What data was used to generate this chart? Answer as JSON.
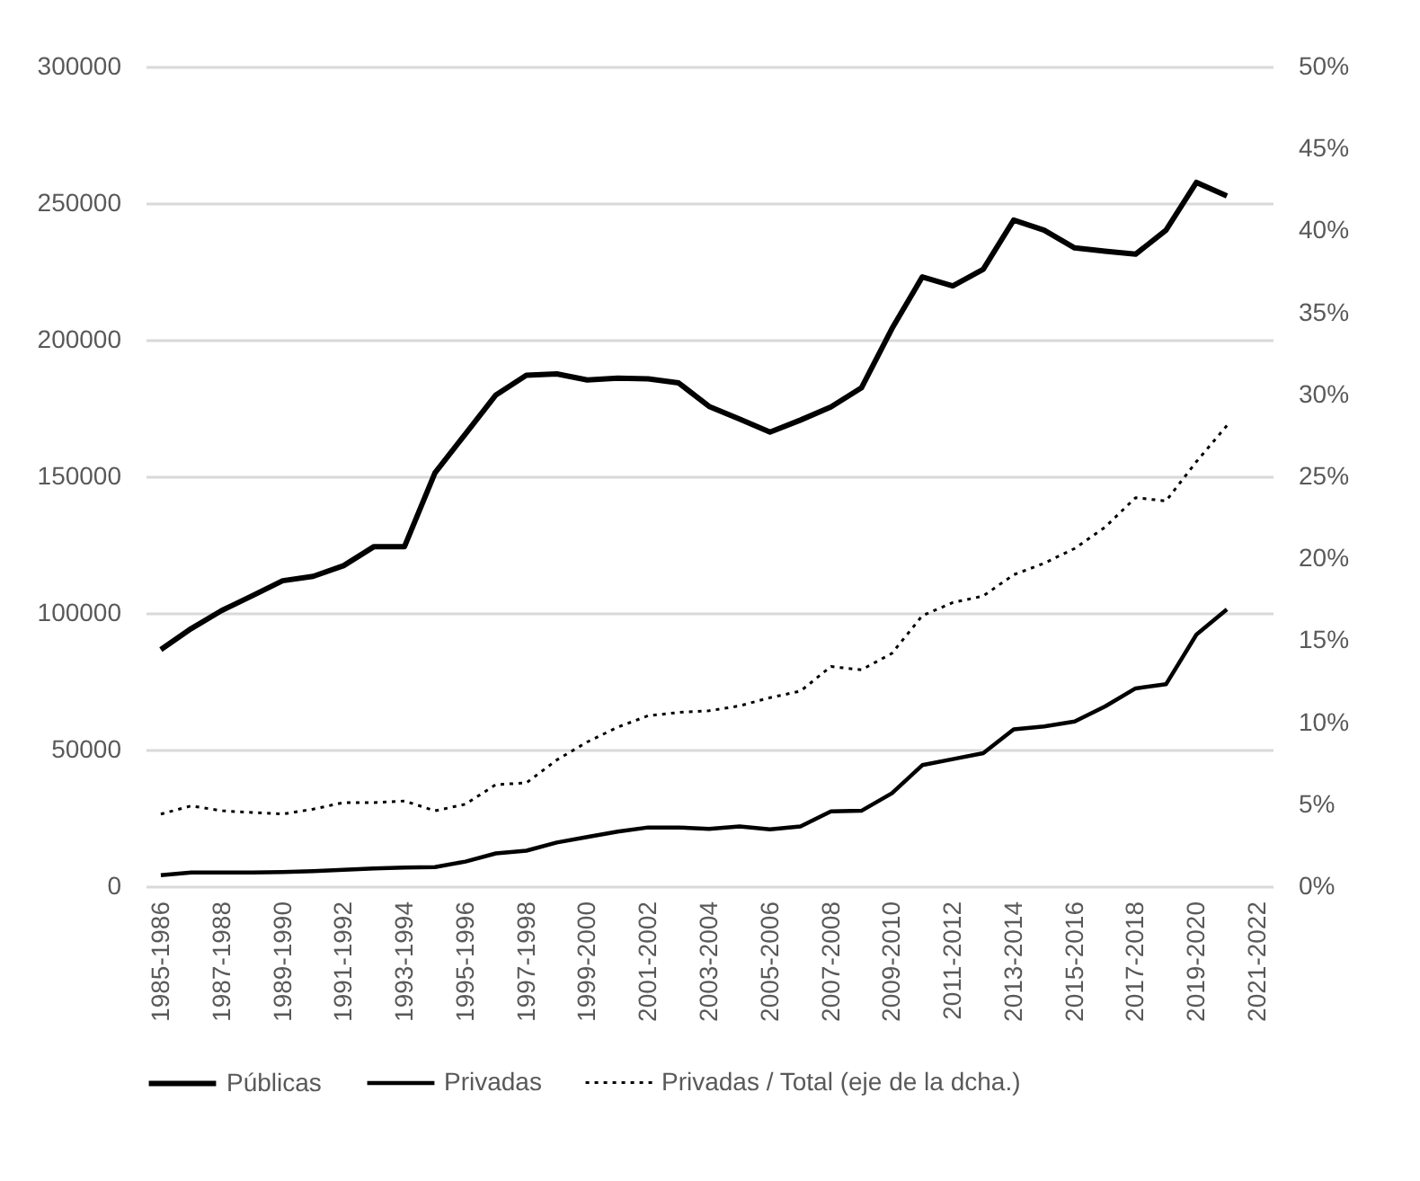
{
  "chart_data": {
    "type": "line",
    "categories": [
      "1985-1986",
      null,
      "1987-1988",
      null,
      "1989-1990",
      null,
      "1991-1992",
      null,
      "1993-1994",
      null,
      "1995-1996",
      null,
      "1997-1998",
      null,
      "1999-2000",
      null,
      "2001-2002",
      null,
      "2003-2004",
      null,
      "2005-2006",
      null,
      "2007-2008",
      null,
      "2009-2010",
      null,
      "2011-2012",
      null,
      "2013-2014",
      null,
      "2015-2016",
      null,
      "2017-2018",
      null,
      "2019-2020",
      null,
      "2021-2022"
    ],
    "series": [
      {
        "name": "Públicas",
        "color": "#000000",
        "line_style": "solid",
        "values": [
          86600,
          94300,
          100900,
          106300,
          111800,
          113400,
          117300,
          124300,
          124300,
          151300,
          165500,
          179800,
          187000,
          187500,
          185300,
          185900,
          185700,
          184200,
          175600,
          171000,
          166200,
          170600,
          175400,
          182400,
          204000,
          223000,
          219700,
          225800,
          243800,
          240100,
          233600,
          232400,
          231300,
          240100,
          257600,
          252600,
          null
        ]
      },
      {
        "name": "Privadas",
        "color": "#000000",
        "line_style": "solid",
        "values": [
          4000,
          5000,
          5000,
          5000,
          5200,
          5500,
          6000,
          6500,
          6800,
          7000,
          9000,
          12000,
          13000,
          16000,
          18000,
          20000,
          21500,
          21500,
          21000,
          21900,
          20800,
          21900,
          27400,
          27600,
          34000,
          44300,
          46500,
          48700,
          57400,
          58500,
          60300,
          65800,
          72400,
          73900,
          92100,
          101300,
          null
        ]
      },
      {
        "name": "Privadas / Total (eje de la dcha.)",
        "color": "#000000",
        "line_style": "dotted",
        "axis": "y2",
        "values": [
          4.4,
          4.9,
          4.6,
          4.5,
          4.4,
          4.7,
          5.1,
          5.1,
          5.2,
          4.6,
          5.0,
          6.2,
          6.3,
          7.7,
          8.8,
          9.7,
          10.4,
          10.6,
          10.7,
          11.0,
          11.5,
          11.9,
          13.4,
          13.2,
          14.2,
          16.5,
          17.3,
          17.7,
          19.0,
          19.7,
          20.6,
          21.9,
          23.7,
          23.5,
          25.9,
          28.1,
          null
        ]
      }
    ],
    "ylim": [
      0,
      300000
    ],
    "yticks": [
      0,
      50000,
      100000,
      150000,
      200000,
      250000,
      300000
    ],
    "y2lim": [
      0,
      50
    ],
    "y2ticks": [
      {
        "value": 0,
        "label": "0%"
      },
      {
        "value": 5,
        "label": "5%"
      },
      {
        "value": 10,
        "label": "10%"
      },
      {
        "value": 15,
        "label": "15%"
      },
      {
        "value": 20,
        "label": "20%"
      },
      {
        "value": 25,
        "label": "25%"
      },
      {
        "value": 30,
        "label": "30%"
      },
      {
        "value": 35,
        "label": "35%"
      },
      {
        "value": 40,
        "label": "40%"
      },
      {
        "value": 45,
        "label": "45%"
      },
      {
        "value": 50,
        "label": "50%"
      }
    ],
    "grid": "y",
    "legend": "bottom",
    "marker": "none"
  }
}
